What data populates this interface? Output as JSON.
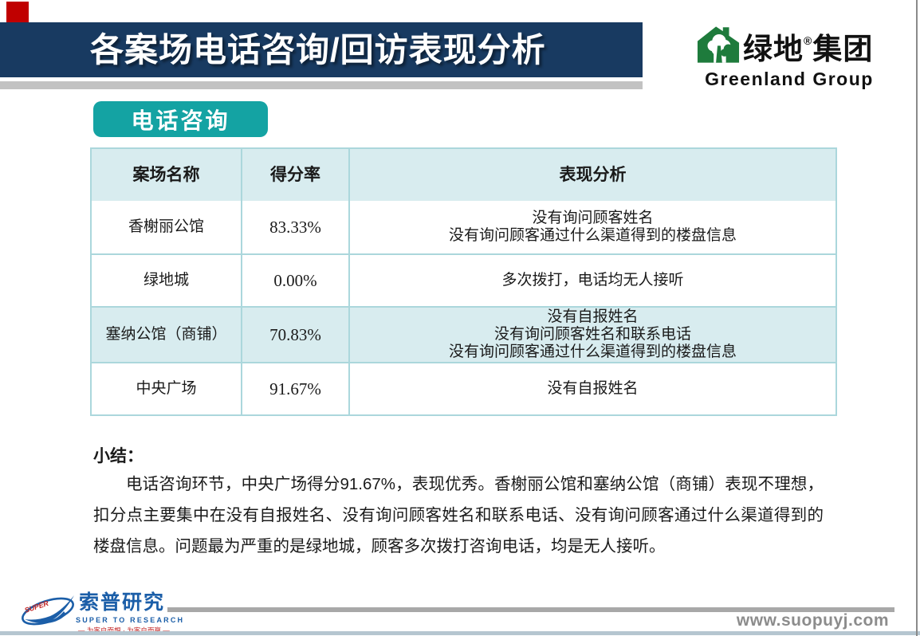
{
  "header": {
    "title": "各案场电话咨询/回访表现分析"
  },
  "brand": {
    "icon": "greenland-house-icon",
    "cn_part1": "绿地",
    "reg_mark": "®",
    "cn_part2": "集团",
    "en": "Greenland Group"
  },
  "section_tab": {
    "label": "电话咨询"
  },
  "table": {
    "columns": [
      "案场名称",
      "得分率",
      "表现分析"
    ],
    "rows": [
      {
        "name": "香榭丽公馆",
        "score": "83.33%",
        "analysis": [
          "没有询问顾客姓名",
          "没有询问顾客通过什么渠道得到的楼盘信息"
        ],
        "highlight": false
      },
      {
        "name": "绿地城",
        "score": "0.00%",
        "analysis": [
          "多次拨打，电话均无人接听"
        ],
        "highlight": false
      },
      {
        "name": "塞纳公馆（商铺）",
        "score": "70.83%",
        "analysis": [
          "没有自报姓名",
          "没有询问顾客姓名和联系电话",
          "没有询问顾客通过什么渠道得到的楼盘信息"
        ],
        "highlight": true
      },
      {
        "name": "中央广场",
        "score": "91.67%",
        "analysis": [
          "没有自报姓名"
        ],
        "highlight": false
      }
    ]
  },
  "summary": {
    "label": "小结：",
    "text": "电话咨询环节，中央广场得分91.67%，表现优秀。香榭丽公馆和塞纳公馆（商铺）表现不理想，扣分点主要集中在没有自报姓名、没有询问顾客姓名和联系电话、没有询问顾客通过什么渠道得到的楼盘信息。问题最为严重的是绿地城，顾客多次拨打咨询电话，均是无人接听。"
  },
  "footer": {
    "logo_icon": "suopu-swoosh-icon",
    "logo_super": "SUPER",
    "logo_cn": "索普研究",
    "logo_en": "SUPER TO RESEARCH",
    "logo_tagline": "— 为客户而想 · 为客户而赢 —",
    "website": "www.suopuyj.com"
  },
  "colors": {
    "header_bar": "#183A61",
    "accent_red": "#C00000",
    "header_stripe": "#C2C2C2",
    "tab_teal": "#14A3A3",
    "table_fill": "#D8ECEF",
    "table_border": "#ABD7DC",
    "logo_green": "#1E7B3C",
    "logo_blue": "#1B5EA8",
    "logo_red": "#C22626",
    "footer_gray": "#A8A8A8",
    "website_gray": "#8C8C8C",
    "bottom_bar": "#B5C6D0"
  }
}
